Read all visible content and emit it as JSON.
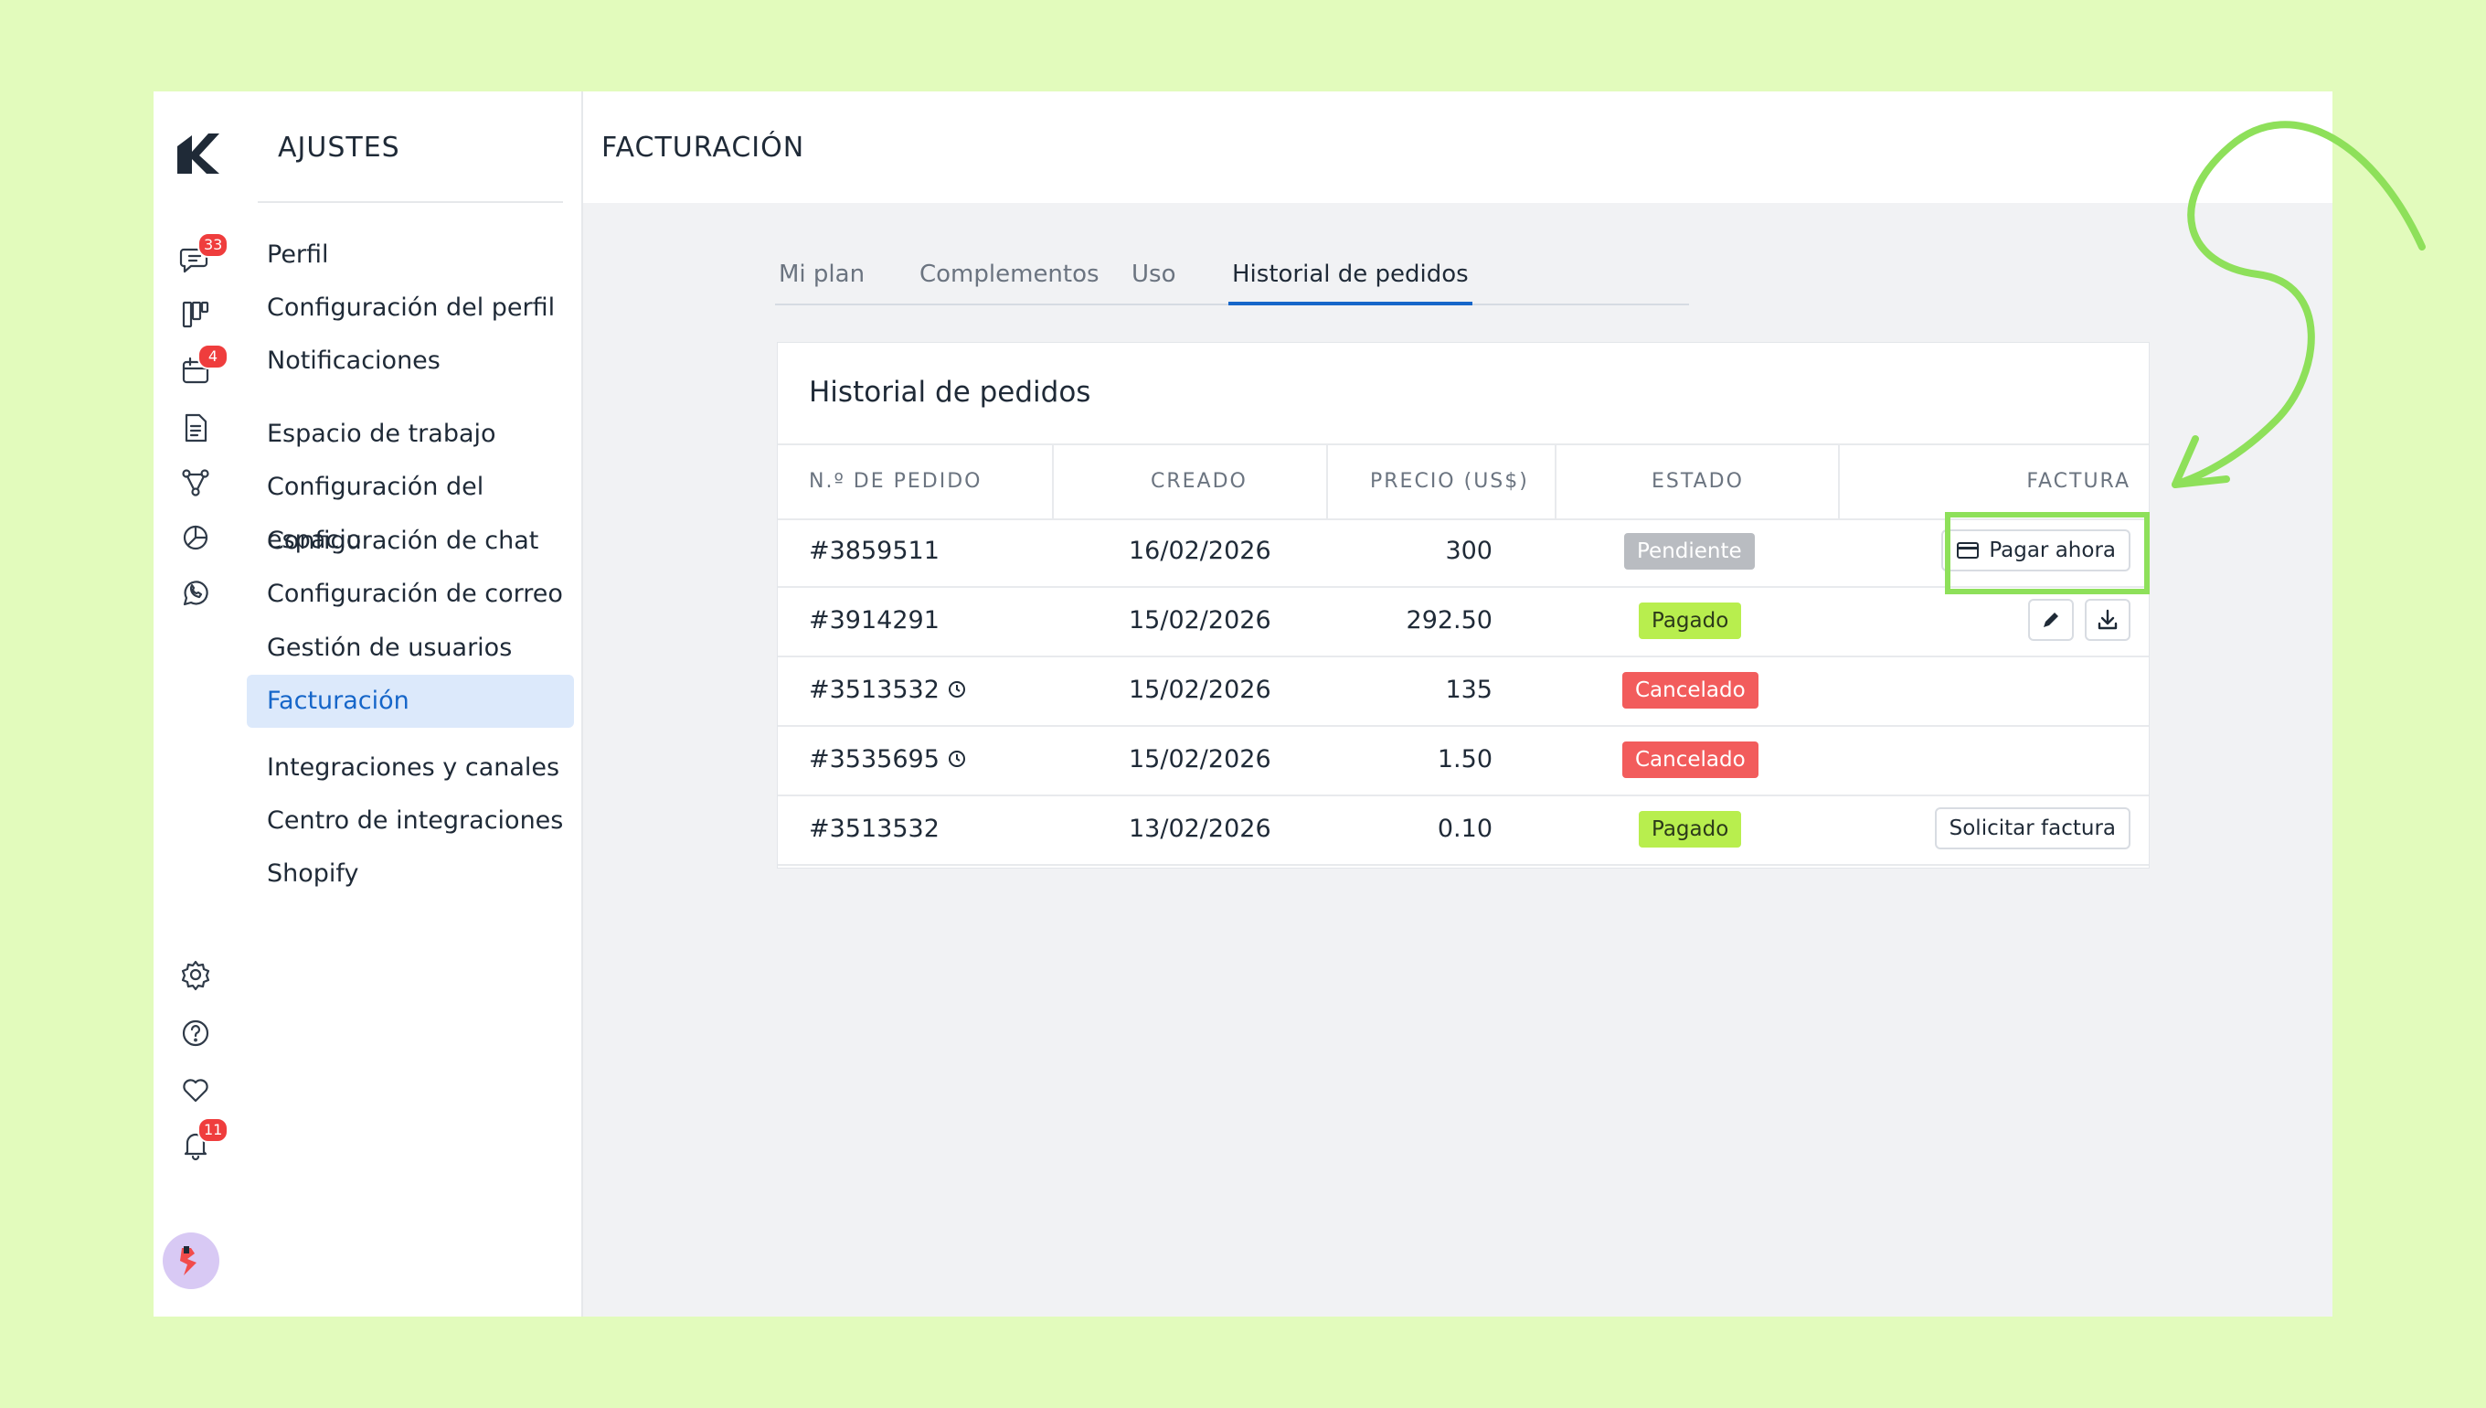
{
  "settings": {
    "title": "AJUSTES",
    "items": [
      {
        "label": "Perfil"
      },
      {
        "label": "Configuración del perfil"
      },
      {
        "label": "Notificaciones"
      },
      {
        "label": "Espacio de trabajo"
      },
      {
        "label": "Configuración del espacio"
      },
      {
        "label": "Configuración de chat"
      },
      {
        "label": "Configuración de correo"
      },
      {
        "label": "Gestión de usuarios"
      },
      {
        "label": "Facturación",
        "active": true
      },
      {
        "label": "Integraciones y canales"
      },
      {
        "label": "Centro de integraciones"
      },
      {
        "label": "Shopify"
      }
    ]
  },
  "rail": {
    "chat_badge": "33",
    "calendar_badge": "4",
    "notifications_badge": "11"
  },
  "header": {
    "title": "FACTURACIÓN"
  },
  "tabs": [
    {
      "label": "Mi plan"
    },
    {
      "label": "Complementos"
    },
    {
      "label": "Uso"
    },
    {
      "label": "Historial de pedidos",
      "active": true
    }
  ],
  "orders": {
    "title": "Historial de pedidos",
    "columns": {
      "order_no": "N.º DE PEDIDO",
      "created": "CREADO",
      "price": "PRECIO (US$)",
      "status": "ESTADO",
      "invoice": "FACTURA"
    },
    "rows": [
      {
        "id": "#3859511",
        "date": "16/02/2026",
        "price": "300",
        "status": "Pendiente",
        "action": "Pagar ahora"
      },
      {
        "id": "#3914291",
        "date": "15/02/2026",
        "price": "292.50",
        "status": "Pagado"
      },
      {
        "id": "#3513532",
        "date": "15/02/2026",
        "price": "135",
        "status": "Cancelado"
      },
      {
        "id": "#3535695",
        "date": "15/02/2026",
        "price": "1.50",
        "status": "Cancelado"
      },
      {
        "id": "#3513532",
        "date": "13/02/2026",
        "price": "0.10",
        "status": "Pagado",
        "action": "Solicitar factura"
      }
    ]
  },
  "colors": {
    "background": "#e2fbbc",
    "accent": "#1666c9",
    "highlight": "#8ee05a",
    "paid": "#b8ee4e",
    "cancelled": "#f25c5c",
    "pending": "#b9bcc1"
  }
}
